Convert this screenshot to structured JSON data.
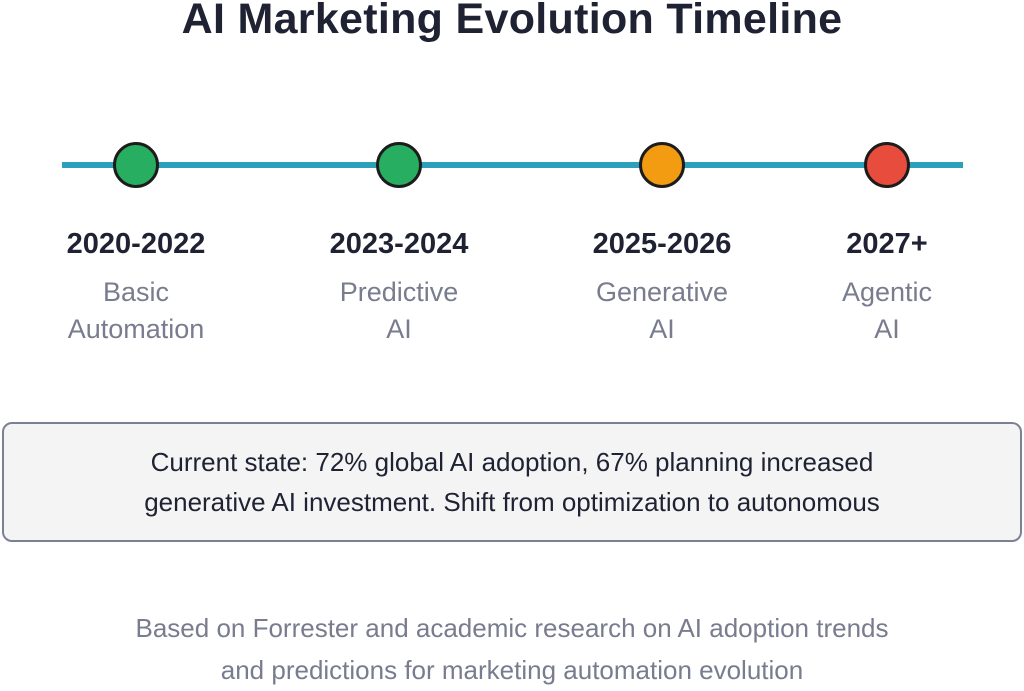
{
  "title": "AI Marketing Evolution Timeline",
  "colors": {
    "timeline_line": "#2e9fbb",
    "green": "#27ae60",
    "orange": "#f39c12",
    "red": "#e74c3c"
  },
  "timeline": [
    {
      "years": "2020-2022",
      "label_line1": "Basic",
      "label_line2": "Automation",
      "marker_color": "#27ae60"
    },
    {
      "years": "2023-2024",
      "label_line1": "Predictive",
      "label_line2": "AI",
      "marker_color": "#27ae60"
    },
    {
      "years": "2025-2026",
      "label_line1": "Generative",
      "label_line2": "AI",
      "marker_color": "#f39c12"
    },
    {
      "years": "2027+",
      "label_line1": "Agentic",
      "label_line2": "AI",
      "marker_color": "#e74c3c"
    }
  ],
  "summary": {
    "line1": "Current state: 72% global AI adoption, 67% planning increased",
    "line2": "generative AI investment. Shift from optimization to autonomous"
  },
  "footnote": {
    "line1": "Based on Forrester and academic research on AI adoption trends",
    "line2": "and predictions for marketing automation evolution"
  }
}
